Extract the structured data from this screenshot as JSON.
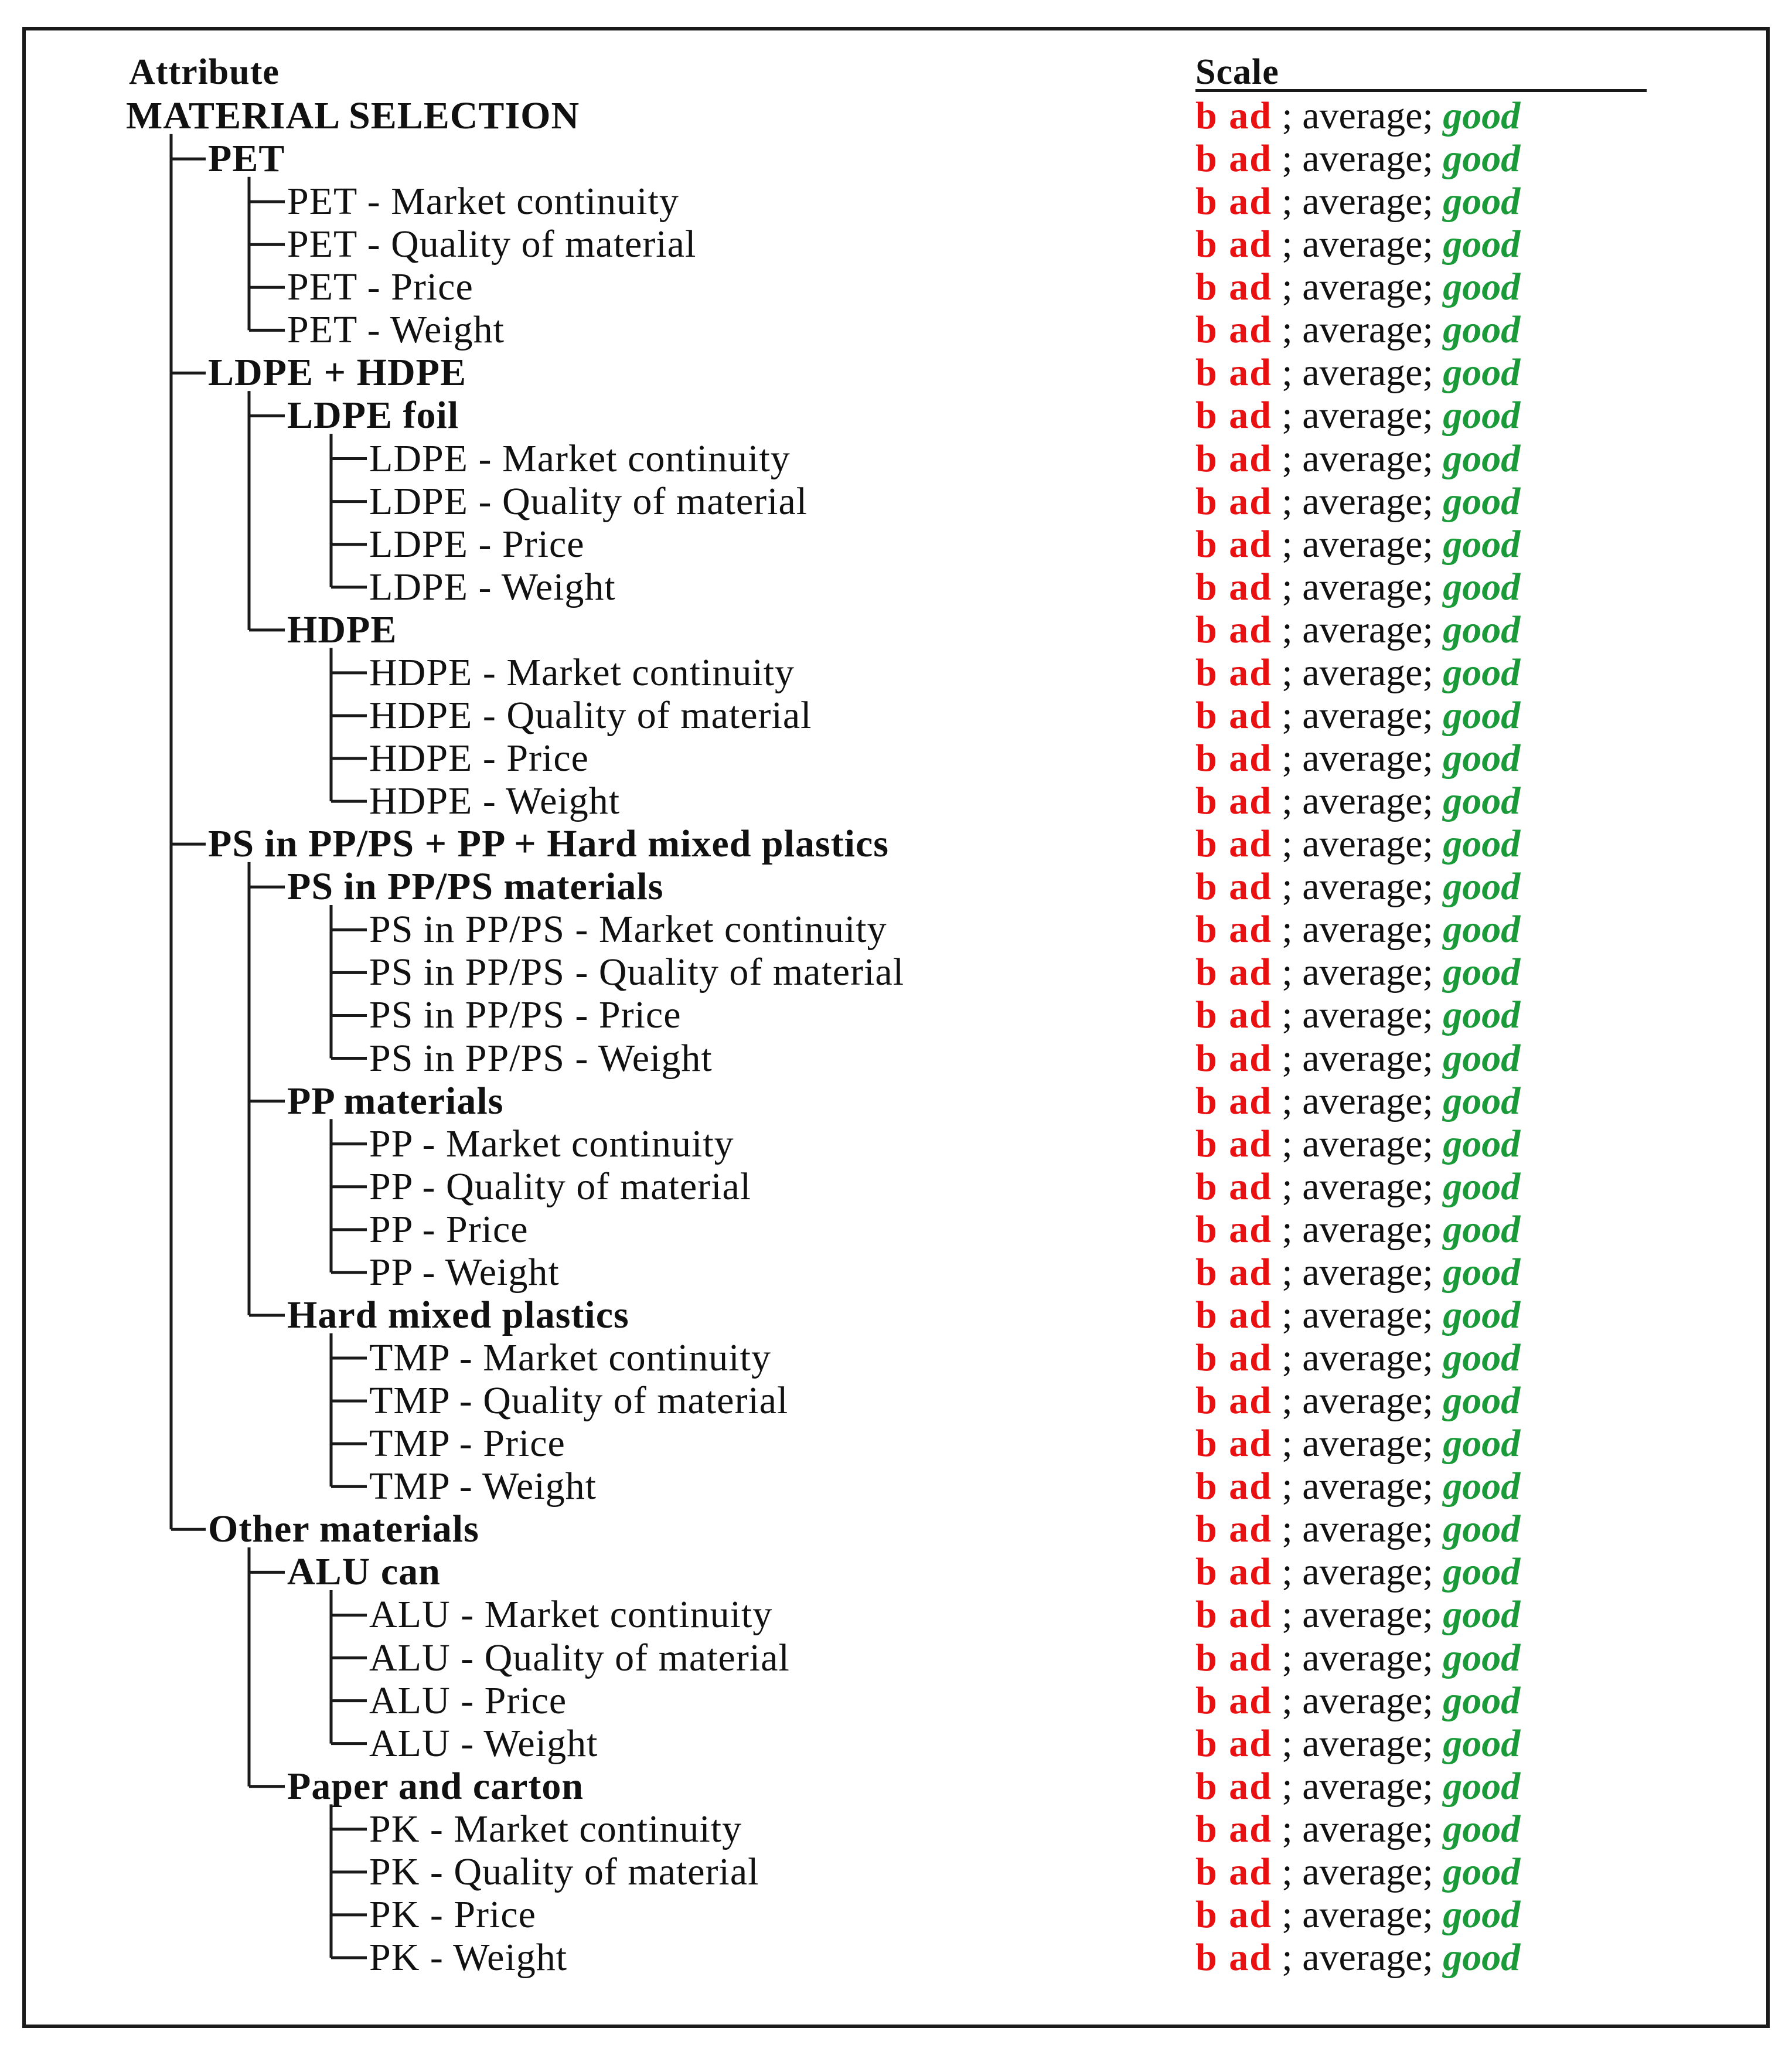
{
  "header": {
    "attribute_label": "Attribute",
    "scale_label": "Scale"
  },
  "scale_values": {
    "bad": "b ad",
    "separator1": " ; ",
    "average": "average",
    "separator2": "; ",
    "good": "good"
  },
  "rows": [
    {
      "label": "MATERIAL SELECTION",
      "level": 0,
      "bold": true
    },
    {
      "label": "PET",
      "level": 1,
      "bold": true
    },
    {
      "label": "PET - Market continuity",
      "level": 2,
      "bold": false
    },
    {
      "label": "PET - Quality of material",
      "level": 2,
      "bold": false
    },
    {
      "label": "PET - Price",
      "level": 2,
      "bold": false
    },
    {
      "label": "PET - Weight",
      "level": 2,
      "bold": false
    },
    {
      "label": "LDPE + HDPE",
      "level": 1,
      "bold": true
    },
    {
      "label": "LDPE foil",
      "level": 2,
      "bold": true
    },
    {
      "label": "LDPE - Market continuity",
      "level": 3,
      "bold": false
    },
    {
      "label": "LDPE - Quality of material",
      "level": 3,
      "bold": false
    },
    {
      "label": "LDPE - Price",
      "level": 3,
      "bold": false
    },
    {
      "label": "LDPE - Weight",
      "level": 3,
      "bold": false
    },
    {
      "label": "HDPE",
      "level": 2,
      "bold": true
    },
    {
      "label": "HDPE - Market continuity",
      "level": 3,
      "bold": false
    },
    {
      "label": "HDPE - Quality of material",
      "level": 3,
      "bold": false
    },
    {
      "label": "HDPE - Price",
      "level": 3,
      "bold": false
    },
    {
      "label": "HDPE - Weight",
      "level": 3,
      "bold": false
    },
    {
      "label": "PS in PP/PS + PP + Hard mixed plastics",
      "level": 1,
      "bold": true
    },
    {
      "label": "PS in PP/PS materials",
      "level": 2,
      "bold": true
    },
    {
      "label": "PS in PP/PS - Market continuity",
      "level": 3,
      "bold": false
    },
    {
      "label": "PS in PP/PS - Quality of material",
      "level": 3,
      "bold": false
    },
    {
      "label": "PS in PP/PS - Price",
      "level": 3,
      "bold": false
    },
    {
      "label": "PS in PP/PS - Weight",
      "level": 3,
      "bold": false
    },
    {
      "label": "PP materials",
      "level": 2,
      "bold": true
    },
    {
      "label": "PP - Market continuity",
      "level": 3,
      "bold": false
    },
    {
      "label": "PP - Quality of material",
      "level": 3,
      "bold": false
    },
    {
      "label": "PP - Price",
      "level": 3,
      "bold": false
    },
    {
      "label": "PP - Weight",
      "level": 3,
      "bold": false
    },
    {
      "label": "Hard mixed plastics",
      "level": 2,
      "bold": true
    },
    {
      "label": "TMP - Market continuity",
      "level": 3,
      "bold": false
    },
    {
      "label": "TMP - Quality of material",
      "level": 3,
      "bold": false
    },
    {
      "label": "TMP - Price",
      "level": 3,
      "bold": false
    },
    {
      "label": "TMP - Weight",
      "level": 3,
      "bold": false
    },
    {
      "label": "Other materials",
      "level": 1,
      "bold": true
    },
    {
      "label": "ALU can",
      "level": 2,
      "bold": true
    },
    {
      "label": "ALU - Market continuity",
      "level": 3,
      "bold": false
    },
    {
      "label": "ALU - Quality of material",
      "level": 3,
      "bold": false
    },
    {
      "label": "ALU - Price",
      "level": 3,
      "bold": false
    },
    {
      "label": "ALU - Weight",
      "level": 3,
      "bold": false
    },
    {
      "label": "Paper and carton",
      "level": 2,
      "bold": true
    },
    {
      "label": "PK - Market continuity",
      "level": 3,
      "bold": false
    },
    {
      "label": "PK - Quality of material",
      "level": 3,
      "bold": false
    },
    {
      "label": "PK - Price",
      "level": 3,
      "bold": false
    },
    {
      "label": "PK - Weight",
      "level": 3,
      "bold": false
    }
  ]
}
